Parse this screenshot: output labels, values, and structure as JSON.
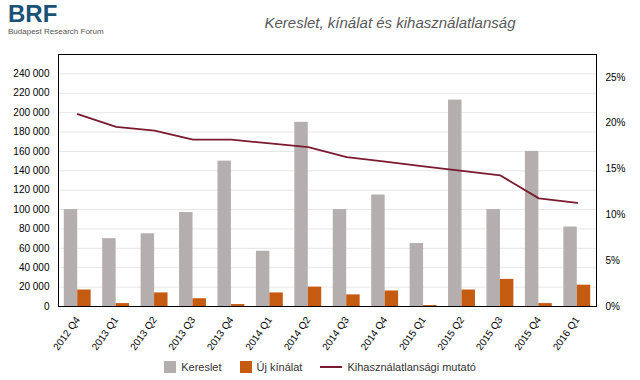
{
  "chart_data": {
    "type": "bar",
    "title": "Kereslet, kínálat és kihasználatlanság",
    "annotations": [
      {
        "text": "BRF",
        "color": "#1a5276"
      },
      {
        "text": "Budapest Research Forum",
        "color": "#555555"
      }
    ],
    "categories": [
      "2012 Q4",
      "2013 Q1",
      "2013 Q2",
      "2013 Q3",
      "2013 Q4",
      "2014 Q1",
      "2014 Q2",
      "2014 Q3",
      "2014 Q4",
      "2015 Q1",
      "2015 Q2",
      "2015 Q3",
      "2015 Q4",
      "2016 Q1"
    ],
    "series": [
      {
        "name": "Kereslet",
        "type": "bar",
        "color": "#b5aeae",
        "values": [
          100000,
          70000,
          75000,
          97000,
          150000,
          57000,
          190000,
          100000,
          115000,
          65000,
          213000,
          100000,
          160000,
          82000
        ]
      },
      {
        "name": "Új kínálat",
        "type": "bar",
        "color": "#c55a11",
        "values": [
          17000,
          3000,
          14000,
          8000,
          2000,
          14000,
          20000,
          12000,
          16000,
          1000,
          17000,
          28000,
          3000,
          22000
        ]
      },
      {
        "name": "Kihasználatlansági mutató",
        "type": "line",
        "axis": "y2",
        "color": "#7b1a2e",
        "values": [
          0.21,
          0.196,
          0.192,
          0.182,
          0.182,
          0.178,
          0.174,
          0.163,
          0.158,
          0.153,
          0.148,
          0.143,
          0.118,
          0.113
        ]
      }
    ],
    "ylim": [
      0,
      260000
    ],
    "yticks": [
      0,
      {
        "value": 20000,
        "label": "20 000"
      },
      {
        "value": 40000,
        "label": "40 000"
      },
      {
        "value": 60000,
        "label": "60 000"
      },
      {
        "value": 80000,
        "label": "80 000"
      },
      {
        "value": 100000,
        "label": "100 000"
      },
      {
        "value": 120000,
        "label": "120 000"
      },
      {
        "value": 140000,
        "label": "140 000"
      },
      {
        "value": 160000,
        "label": "160 000"
      },
      {
        "value": 180000,
        "label": "180 000"
      },
      {
        "value": 200000,
        "label": "200 000"
      },
      {
        "value": 220000,
        "label": "220 000"
      },
      {
        "value": 240000,
        "label": "240 000"
      }
    ],
    "y2lim": [
      0,
      0.275
    ],
    "y2ticks": [
      {
        "value": 0,
        "label": "0%"
      },
      {
        "value": 0.05,
        "label": "5%"
      },
      {
        "value": 0.1,
        "label": "10%"
      },
      {
        "value": 0.15,
        "label": "15%"
      },
      {
        "value": 0.2,
        "label": "20%"
      },
      {
        "value": 0.25,
        "label": "25%"
      }
    ],
    "grid": true,
    "legend": "bottom"
  }
}
